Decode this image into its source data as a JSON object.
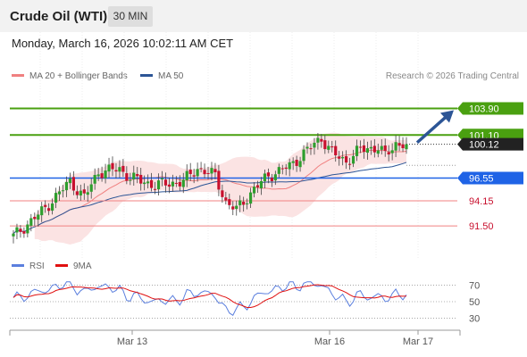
{
  "header": {
    "title": "Crude Oil (WTI)",
    "timeframe": "30 MIN"
  },
  "datetime": "Monday, March 16, 2026 10:02:11 AM CET",
  "legend": {
    "ma20_label": "MA 20 + Bollinger Bands",
    "ma50_label": "MA 50",
    "ma20_color": "#f08080",
    "ma50_color": "#2c5596"
  },
  "credit": "Research © 2026 Trading Central",
  "rsi_legend": {
    "rsi_label": "RSI",
    "ma_label": "9MA",
    "rsi_color": "#5b7fde",
    "ma_color": "#e01010"
  },
  "colors": {
    "up": "#2e9e2e",
    "down": "#c8102e",
    "target": "#4aa010",
    "current": "#222222",
    "pivot": "#1f63e6",
    "support": "#f08080",
    "arrow": "#2c5596"
  },
  "chart_data": {
    "type": "candlestick",
    "ylim": [
      88.5,
      106.4
    ],
    "x_labels": [
      "Mar 13",
      "Mar 16",
      "Mar 17"
    ],
    "levels": [
      {
        "name": "target2",
        "value": 103.9,
        "label": "103.90",
        "style": "target"
      },
      {
        "name": "target1",
        "value": 101.1,
        "label": "101.10",
        "style": "target"
      },
      {
        "name": "current",
        "value": 100.12,
        "label": "100.12",
        "style": "current"
      },
      {
        "name": "pivot",
        "value": 96.55,
        "label": "96.55",
        "style": "pivot"
      },
      {
        "name": "support1",
        "value": 94.15,
        "label": "94.15",
        "style": "support"
      },
      {
        "name": "support2",
        "value": 91.5,
        "label": "91.50",
        "style": "support"
      }
    ],
    "rsi": {
      "levels": [
        70,
        50,
        30
      ],
      "ylim": [
        22,
        78
      ]
    },
    "arrow": {
      "from_price": 100.3,
      "to_price": 103.9
    }
  }
}
